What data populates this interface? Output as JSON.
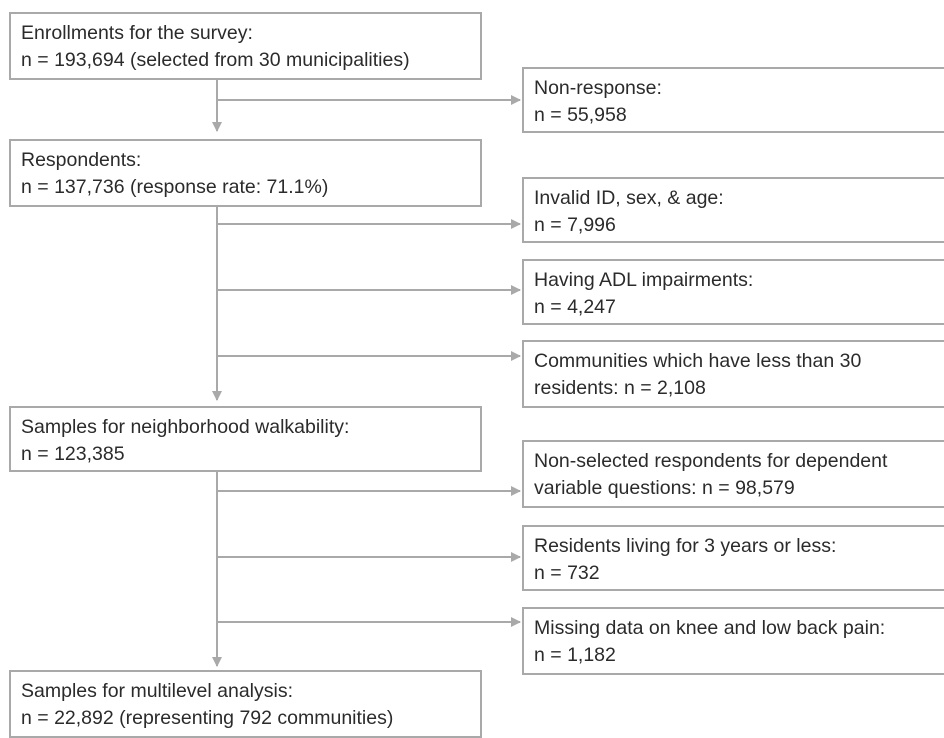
{
  "main_steps": [
    {
      "line1": "Enrollments for the survey:",
      "line2": "n = 193,694 (selected from 30 municipalities)"
    },
    {
      "line1": "Respondents:",
      "line2": "n = 137,736 (response rate: 71.1%)"
    },
    {
      "line1": "Samples for neighborhood walkability:",
      "line2": "n = 123,385"
    },
    {
      "line1": "Samples for multilevel analysis:",
      "line2": "n = 22,892 (representing 792 communities)"
    }
  ],
  "exclusions": [
    {
      "line1": "Non-response:",
      "line2": "n = 55,958"
    },
    {
      "line1": "Invalid ID, sex, & age:",
      "line2": "n = 7,996"
    },
    {
      "line1": "Having ADL impairments:",
      "line2": "n = 4,247"
    },
    {
      "line1": "Communities which have less than 30",
      "line2": "residents: n = 2,108"
    },
    {
      "line1": "Non-selected respondents for dependent",
      "line2": "variable questions: n = 98,579"
    },
    {
      "line1": "Residents living for 3 years or less:",
      "line2": "n = 732"
    },
    {
      "line1": "Missing data on knee and low back pain:",
      "line2": "n = 1,182"
    }
  ],
  "colors": {
    "box_border": "#a9a9a9",
    "arrow": "#a9a9a9",
    "text": "#2b2b2b"
  }
}
